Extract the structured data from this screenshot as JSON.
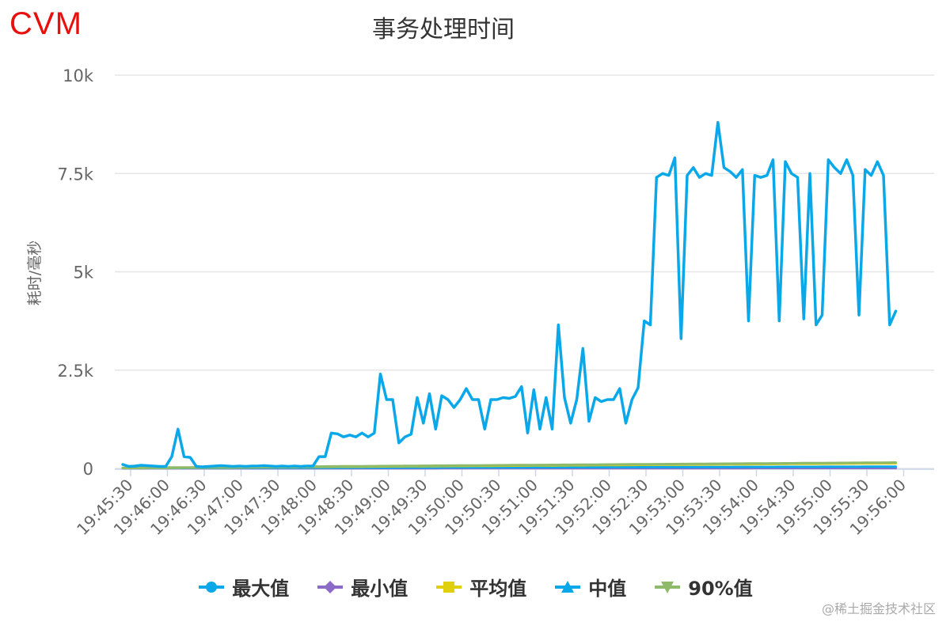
{
  "brand_label": "CVM",
  "watermark": "@稀土掘金技术社区",
  "chart_data": {
    "type": "line",
    "title": "事务处理时间",
    "ylabel": "耗时/毫秒",
    "xlabel": "",
    "ylim": [
      0,
      10000
    ],
    "yticks": [
      0,
      2500,
      5000,
      7500,
      10000
    ],
    "ytick_labels": [
      "0",
      "2.5k",
      "5k",
      "7.5k",
      "10k"
    ],
    "xtick_labels": [
      "19:45:30",
      "19:46:00",
      "19:46:30",
      "19:47:00",
      "19:47:30",
      "19:48:00",
      "19:48:30",
      "19:49:00",
      "19:49:30",
      "19:50:00",
      "19:50:30",
      "19:51:00",
      "19:51:30",
      "19:52:00",
      "19:52:30",
      "19:53:00",
      "19:53:30",
      "19:54:00",
      "19:54:30",
      "19:55:00",
      "19:55:30",
      "19:56:00"
    ],
    "sample_interval_seconds": 5,
    "legend_position": "bottom",
    "grid": true,
    "series": [
      {
        "name": "最大值",
        "color": "#0aa8e8",
        "marker": "circle",
        "values": [
          100,
          50,
          60,
          80,
          70,
          60,
          50,
          50,
          300,
          1000,
          300,
          280,
          50,
          40,
          50,
          60,
          70,
          60,
          50,
          60,
          50,
          60,
          60,
          70,
          60,
          50,
          60,
          50,
          60,
          50,
          60,
          60,
          300,
          300,
          900,
          880,
          800,
          850,
          800,
          900,
          800,
          900,
          2400,
          1750,
          1750,
          650,
          800,
          870,
          1800,
          1150,
          1900,
          1000,
          1850,
          1750,
          1550,
          1750,
          2030,
          1750,
          1750,
          1000,
          1750,
          1750,
          1800,
          1780,
          1830,
          2080,
          900,
          2000,
          1000,
          1800,
          1000,
          3650,
          1800,
          1150,
          1750,
          3050,
          1200,
          1800,
          1700,
          1750,
          1750,
          2030,
          1150,
          1750,
          2050,
          3750,
          3650,
          7400,
          7500,
          7450,
          7900,
          3300,
          7450,
          7650,
          7400,
          7500,
          7450,
          8800,
          7650,
          7550,
          7400,
          7600,
          3750,
          7450,
          7400,
          7450,
          7850,
          3750,
          7800,
          7500,
          7400,
          3800,
          7500,
          3650,
          3900,
          7850,
          7650,
          7500,
          7850,
          7450,
          3900,
          7600,
          7450,
          7800,
          7450,
          3650,
          4000
        ]
      },
      {
        "name": "最小值",
        "color": "#8c6bc8",
        "marker": "diamond",
        "start": 5,
        "end": 10
      },
      {
        "name": "平均值",
        "color": "#e0cf0c",
        "marker": "square",
        "start": 10,
        "end": 130
      },
      {
        "name": "中值",
        "color": "#0aa8e8",
        "marker": "triangle",
        "start": 8,
        "end": 45
      },
      {
        "name": "90%值",
        "color": "#8fba6a",
        "marker": "triangle-down",
        "start": 15,
        "end": 150
      }
    ]
  }
}
